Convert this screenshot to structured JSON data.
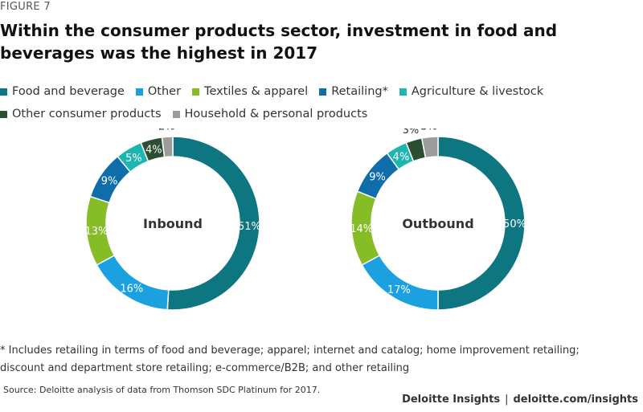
{
  "figure_label": "FIGURE 7",
  "title": "Within the consumer products sector, investment in food and beverages was the highest in 2017",
  "legend": [
    {
      "label": "Food and beverage",
      "color": "#0D7680"
    },
    {
      "label": "Other",
      "color": "#1BA1E0"
    },
    {
      "label": "Textiles & apparel",
      "color": "#86BC25"
    },
    {
      "label": "Retailing*",
      "color": "#0F6EAA"
    },
    {
      "label": "Agriculture & livestock",
      "color": "#1DB5B0"
    },
    {
      "label": "Other consumer products",
      "color": "#2B4F30"
    },
    {
      "label": "Household & personal products",
      "color": "#9C9C9C"
    }
  ],
  "chart_data": [
    {
      "type": "pie",
      "title": "Inbound",
      "categories": [
        "Food and beverage",
        "Other",
        "Textiles & apparel",
        "Retailing*",
        "Agriculture & livestock",
        "Other consumer products",
        "Household & personal products"
      ],
      "values": [
        51,
        16,
        13,
        9,
        5,
        4,
        2
      ],
      "labels": [
        "51%",
        "16%",
        "13%",
        "9%",
        "5%",
        "4%",
        "2%"
      ]
    },
    {
      "type": "pie",
      "title": "Outbound",
      "categories": [
        "Food and beverage",
        "Other",
        "Textiles & apparel",
        "Retailing*",
        "Agriculture & livestock",
        "Other consumer products",
        "Household & personal products"
      ],
      "values": [
        50,
        17,
        14,
        9,
        4,
        3,
        3
      ],
      "labels": [
        "50%",
        "17%",
        "14%",
        "9%",
        "4%",
        "3%",
        "3%"
      ]
    }
  ],
  "footnote_line1": "* Includes retailing in terms of food and beverage; apparel; internet and catalog; home improvement retailing;",
  "footnote_line2": "discount and department store retailing; e-commerce/B2B; and other retailing",
  "source": "Source: Deloitte analysis of data from Thomson SDC Platinum for 2017.",
  "brand_name": "Deloitte Insights",
  "brand_separator": "|",
  "brand_url": "deloitte.com/insights"
}
